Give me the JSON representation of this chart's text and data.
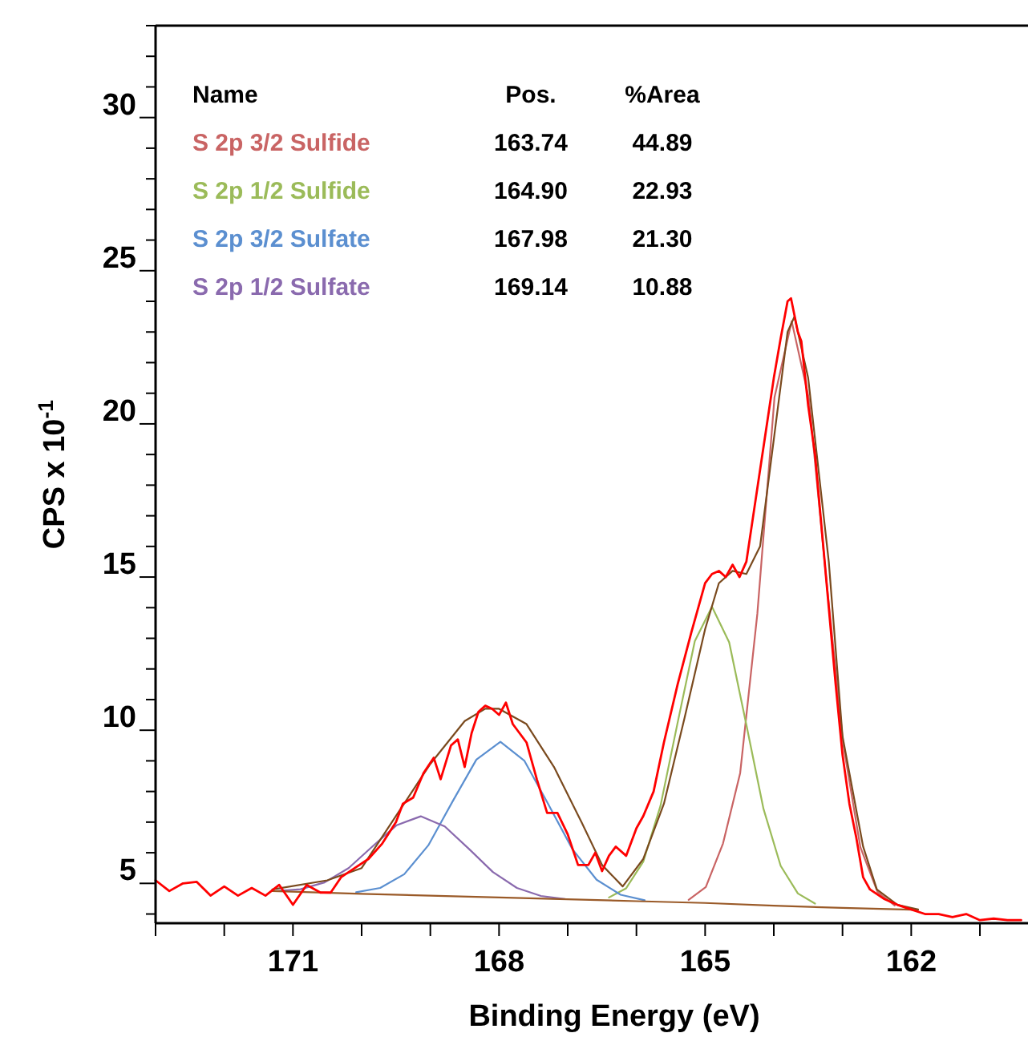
{
  "chart_data": {
    "type": "line",
    "xlabel": "Binding Energy (eV)",
    "ylabel": "CPS x 10$^{-1}$",
    "xlim": [
      173,
      160.3
    ],
    "ylim": [
      3.7,
      33
    ],
    "xticks": [
      {
        "value": 173,
        "label": null
      },
      {
        "value": 172,
        "label": null
      },
      171,
      {
        "value": 170,
        "label": null
      },
      {
        "value": 169,
        "label": null
      },
      168,
      {
        "value": 167,
        "label": null
      },
      {
        "value": 166,
        "label": null
      },
      165,
      {
        "value": 164,
        "label": null
      },
      {
        "value": 163,
        "label": null
      },
      162,
      {
        "value": 161,
        "label": null
      }
    ],
    "yticks": [
      {
        "value": 4,
        "label": null
      },
      5,
      {
        "value": 6,
        "label": null
      },
      {
        "value": 7,
        "label": null
      },
      {
        "value": 8,
        "label": null
      },
      {
        "value": 9,
        "label": null
      },
      10,
      {
        "value": 11,
        "label": null
      },
      {
        "value": 12,
        "label": null
      },
      {
        "value": 13,
        "label": null
      },
      {
        "value": 14,
        "label": null
      },
      15,
      {
        "value": 16,
        "label": null
      },
      {
        "value": 17,
        "label": null
      },
      {
        "value": 18,
        "label": null
      },
      {
        "value": 19,
        "label": null
      },
      20,
      {
        "value": 21,
        "label": null
      },
      {
        "value": 22,
        "label": null
      },
      {
        "value": 23,
        "label": null
      },
      {
        "value": 24,
        "label": null
      },
      25,
      {
        "value": 26,
        "label": null
      },
      {
        "value": 27,
        "label": null
      },
      {
        "value": 28,
        "label": null
      },
      {
        "value": 29,
        "label": null
      },
      30,
      {
        "value": 31,
        "label": null
      },
      {
        "value": 32,
        "label": null
      },
      {
        "value": 33,
        "label": null
      }
    ],
    "grid": false,
    "legend": "top left",
    "marker": "none",
    "line_style": "solid",
    "annotations": [
      "Name",
      "Pos.",
      "%Area",
      "163.74",
      "44.89",
      "164.90",
      "22.93",
      "167.98",
      "21.30",
      "169.14",
      "10.88"
    ],
    "series": [
      {
        "name": "S 2p 3/2 Sulfide",
        "color": "#c96464",
        "x": [
          165.24,
          164.99,
          164.74,
          164.49,
          164.24,
          163.99,
          163.74,
          163.49,
          163.24,
          162.99,
          162.74,
          162.49,
          162.24
        ],
        "values": [
          4.46,
          4.88,
          6.3,
          8.6,
          13.8,
          20.87,
          23.35,
          20.83,
          15.02,
          9.55,
          6.18,
          4.72,
          4.28
        ]
      },
      {
        "name": "S 2p 1/2 Sulfide",
        "color": "#9bbb59",
        "x": [
          166.4,
          166.15,
          165.9,
          165.65,
          165.4,
          165.15,
          164.9,
          164.65,
          164.4,
          164.15,
          163.9,
          163.65,
          163.4
        ],
        "values": [
          4.54,
          4.84,
          5.71,
          7.53,
          10.25,
          12.91,
          14.03,
          12.87,
          10.18,
          7.43,
          5.57,
          4.67,
          4.34
        ]
      },
      {
        "name": "S 2p 3/2 Sulfate",
        "color": "#5b8fd0",
        "x": [
          170.08,
          169.73,
          169.38,
          169.03,
          168.68,
          168.33,
          167.98,
          167.63,
          167.28,
          166.93,
          166.58,
          166.23,
          165.88
        ],
        "values": [
          4.71,
          4.85,
          5.3,
          6.24,
          7.66,
          9.04,
          9.62,
          9.0,
          7.57,
          6.11,
          5.12,
          4.63,
          4.45
        ]
      },
      {
        "name": "S 2p 1/2 Sulfate",
        "color": "#8a6aae",
        "x": [
          171.24,
          170.89,
          170.54,
          170.19,
          169.84,
          169.49,
          169.14,
          168.79,
          168.44,
          168.09,
          167.74,
          167.39,
          167.04
        ],
        "values": [
          4.75,
          4.81,
          5.03,
          5.5,
          6.21,
          6.9,
          7.19,
          6.86,
          6.13,
          5.37,
          4.85,
          4.59,
          4.49
        ]
      },
      {
        "color": "#9a5a28",
        "x": [
          171.3,
          170,
          168,
          166,
          165,
          164,
          163,
          162,
          161.9
        ],
        "values": [
          4.75,
          4.66,
          4.54,
          4.42,
          4.36,
          4.27,
          4.2,
          4.14,
          4.13
        ]
      },
      {
        "color": "#7a4a1e",
        "x": [
          171.3,
          170.5,
          170,
          169.5,
          169,
          168.5,
          168.2,
          168,
          167.6,
          167.2,
          166.8,
          166.5,
          166.2,
          165.9,
          165.6,
          165.3,
          165,
          164.8,
          164.6,
          164.4,
          164.2,
          164,
          163.8,
          163.7,
          163.5,
          163.2,
          163,
          162.7,
          162.5,
          162.2,
          161.9
        ],
        "values": [
          4.8,
          5.1,
          5.5,
          7.2,
          8.9,
          10.3,
          10.7,
          10.7,
          10.2,
          8.8,
          7,
          5.6,
          4.9,
          5.8,
          7.6,
          10.4,
          13.3,
          14.8,
          15.2,
          15.1,
          16,
          19.5,
          23,
          23.5,
          21.5,
          15.5,
          9.8,
          6.2,
          4.8,
          4.3,
          4.15
        ]
      },
      {
        "color": "#ff0000",
        "x": [
          173,
          172.8,
          172.6,
          172.4,
          172.2,
          172,
          171.8,
          171.6,
          171.4,
          171.2,
          171,
          170.8,
          170.6,
          170.45,
          170.3,
          170.1,
          169.9,
          169.7,
          169.5,
          169.4,
          169.25,
          169.1,
          168.95,
          168.85,
          168.7,
          168.6,
          168.5,
          168.4,
          168.3,
          168.2,
          168.1,
          168,
          167.9,
          167.8,
          167.6,
          167.45,
          167.3,
          167.15,
          167,
          166.85,
          166.7,
          166.6,
          166.5,
          166.4,
          166.3,
          166.15,
          166,
          165.9,
          165.75,
          165.6,
          165.4,
          165.2,
          165,
          164.9,
          164.8,
          164.7,
          164.6,
          164.5,
          164.4,
          164.3,
          164.2,
          164.1,
          164,
          163.9,
          163.8,
          163.75,
          163.65,
          163.6,
          163.5,
          163.4,
          163.3,
          163.2,
          163.1,
          163,
          162.9,
          162.8,
          162.7,
          162.6,
          162.4,
          162.2,
          162,
          161.8,
          161.6,
          161.4,
          161.2,
          161,
          160.8,
          160.6,
          160.4
        ],
        "values": [
          5.1,
          4.75,
          5,
          5.05,
          4.6,
          4.9,
          4.6,
          4.85,
          4.6,
          4.95,
          4.3,
          4.95,
          4.7,
          4.7,
          5.2,
          5.5,
          5.8,
          6.3,
          7,
          7.6,
          7.8,
          8.6,
          9.1,
          8.4,
          9.5,
          9.7,
          8.8,
          9.9,
          10.6,
          10.8,
          10.7,
          10.5,
          10.9,
          10.2,
          9.6,
          8.4,
          7.3,
          7.3,
          6.6,
          5.6,
          5.6,
          6,
          5.4,
          5.9,
          6.2,
          5.9,
          6.8,
          7.2,
          8,
          9.6,
          11.5,
          13.2,
          14.8,
          15.1,
          15.2,
          15,
          15.4,
          15,
          15.5,
          17,
          18.5,
          20,
          21.5,
          22.8,
          24,
          24.1,
          23,
          22.7,
          20.6,
          19,
          16.5,
          14,
          11.5,
          9.2,
          7.6,
          6.5,
          5.2,
          4.8,
          4.5,
          4.3,
          4.15,
          4,
          4,
          3.9,
          4,
          3.8,
          3.85,
          3.8,
          3.8
        ]
      }
    ]
  }
}
